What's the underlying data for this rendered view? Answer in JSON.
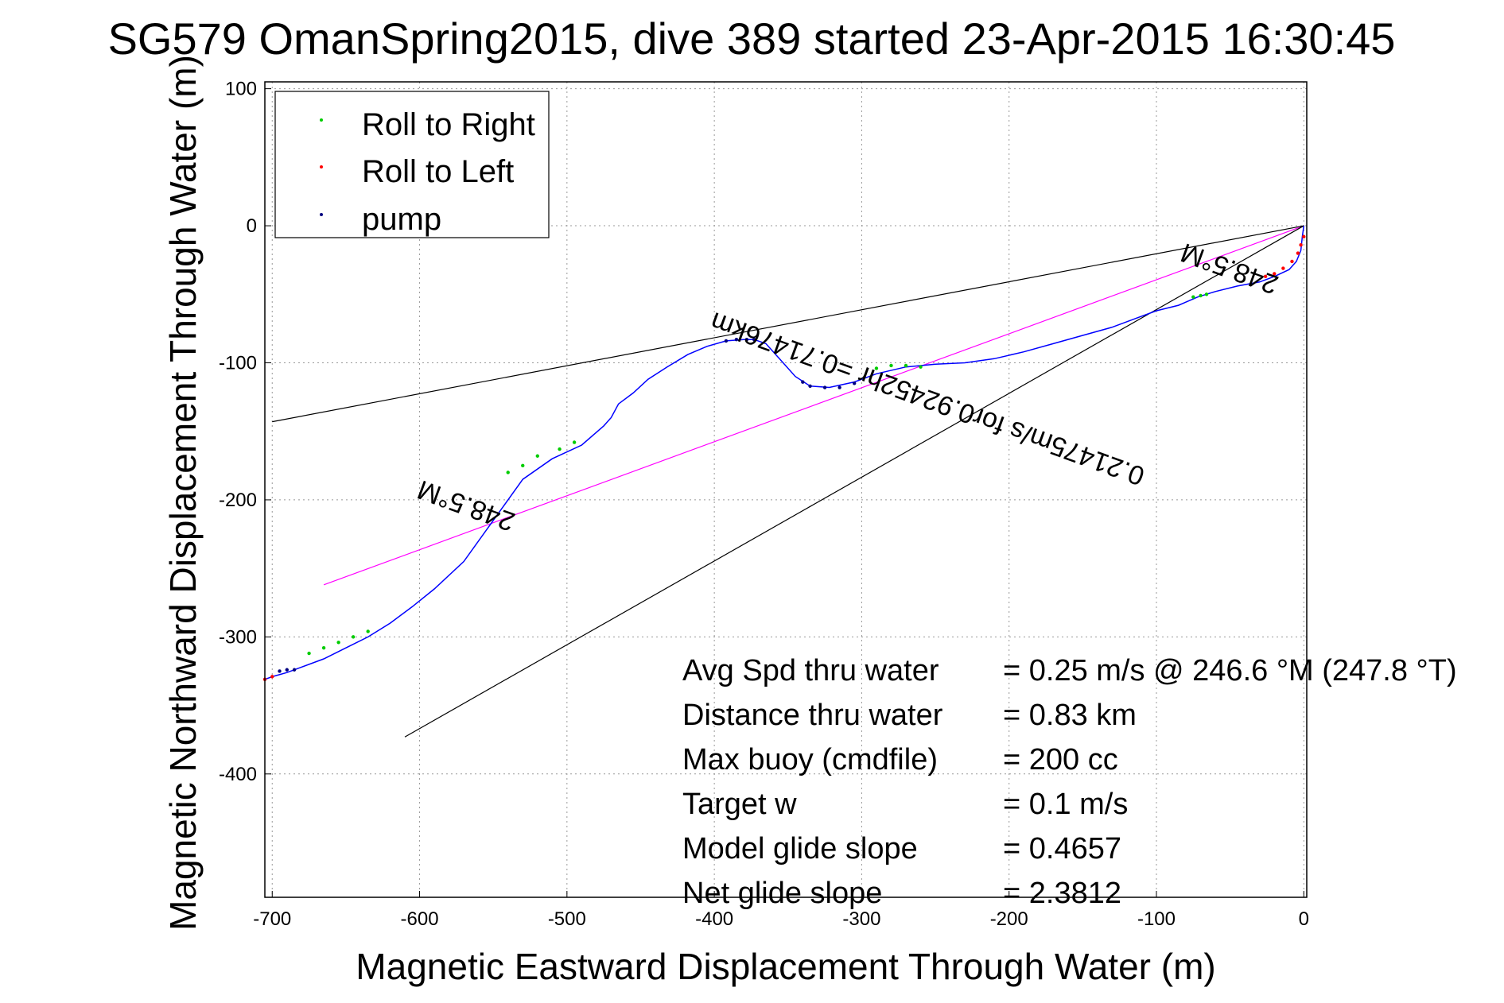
{
  "window": {
    "title": "SG579 OmanSpring2015, dive 389 started 23-Apr-2015 16:30:45"
  },
  "colors": {
    "track": "#0000ff",
    "roll_right": "#00cc00",
    "roll_left": "#ff0000",
    "pump": "#000080",
    "heading_fit": "#ff00ff",
    "sector": "#000000",
    "grid": "#999999"
  },
  "chart_data": {
    "type": "line",
    "title": "SG579 OmanSpring2015, dive 389 started 23-Apr-2015 16:30:45",
    "xlabel": "Magnetic Eastward Displacement Through Water (m)",
    "ylabel": "Magnetic Northward Displacement Through Water (m)",
    "xlim": [
      -705,
      2
    ],
    "ylim": [
      -490,
      105
    ],
    "xticks": [
      -700,
      -600,
      -500,
      -400,
      -300,
      -200,
      -100,
      0
    ],
    "yticks": [
      100,
      0,
      -100,
      -200,
      -300,
      -400
    ],
    "grid": true,
    "legend": {
      "position": "top-left",
      "entries": [
        "Roll to Right",
        "Roll to Left",
        "pump"
      ]
    },
    "series": [
      {
        "name": "track",
        "x": [
          0,
          -1,
          -2,
          -5,
          -10,
          -20,
          -30,
          -45,
          -60,
          -72,
          -85,
          -100,
          -115,
          -130,
          -150,
          -170,
          -190,
          -210,
          -230,
          -250,
          -270,
          -290,
          -305,
          -322,
          -335,
          -345,
          -355,
          -365,
          -373,
          -380,
          -392,
          -405,
          -418,
          -432,
          -445,
          -455,
          -465,
          -470,
          -475,
          -490,
          -510,
          -530,
          -550,
          -570,
          -590,
          -605,
          -620,
          -635,
          -650,
          -665,
          -680,
          -690,
          -700,
          -705
        ],
        "y": [
          0,
          -8,
          -18,
          -26,
          -32,
          -37,
          -41,
          -44,
          -48,
          -52,
          -58,
          -62,
          -68,
          -74,
          -80,
          -86,
          -92,
          -97,
          -100,
          -101,
          -103,
          -108,
          -114,
          -118,
          -117,
          -110,
          -98,
          -86,
          -83,
          -83,
          -84,
          -88,
          -94,
          -103,
          -112,
          -122,
          -130,
          -140,
          -146,
          -160,
          -170,
          -185,
          -215,
          -245,
          -265,
          -278,
          -290,
          -300,
          -308,
          -316,
          -322,
          -326,
          -329,
          -331
        ]
      },
      {
        "name": "Roll to Right",
        "x": [
          -75,
          -70,
          -66,
          -260,
          -270,
          -280,
          -290,
          -495,
          -505,
          -520,
          -530,
          -540,
          -635,
          -645,
          -655,
          -665,
          -675
        ],
        "y": [
          -52,
          -51,
          -50,
          -103,
          -102,
          -102,
          -104,
          -158,
          -163,
          -168,
          -175,
          -180,
          -296,
          -300,
          -304,
          -308,
          -312
        ]
      },
      {
        "name": "Roll to Left",
        "x": [
          0,
          -2,
          -4,
          -8,
          -14,
          -20,
          -26,
          -700,
          -705
        ],
        "y": [
          -8,
          -14,
          -20,
          -26,
          -31,
          -35,
          -37,
          -329,
          -331
        ]
      },
      {
        "name": "pump",
        "x": [
          -305,
          -315,
          -325,
          -335,
          -340,
          -373,
          -378,
          -385,
          -392,
          -685,
          -690,
          -695
        ],
        "y": [
          -115,
          -118,
          -118,
          -117,
          -114,
          -83,
          -83,
          -83,
          -84,
          -324,
          -324,
          -325
        ]
      }
    ],
    "lines": [
      {
        "name": "heading fit",
        "x": [
          -665,
          0
        ],
        "y": [
          -262,
          0
        ]
      },
      {
        "name": "sector upper",
        "x": [
          -700,
          0
        ],
        "y": [
          -143,
          0
        ]
      },
      {
        "name": "sector lower",
        "x": [
          -610,
          0
        ],
        "y": [
          -373,
          0
        ]
      }
    ],
    "annotations": [
      {
        "text": "248.5°M",
        "x": -50,
        "y": -30,
        "rotation": 200
      },
      {
        "text": "248.5°M",
        "x": -568,
        "y": -203,
        "rotation": 200
      },
      {
        "text": "0.21475m/s for0.92452hr =0.71476km",
        "x": -255,
        "y": -125,
        "rotation": 200
      }
    ],
    "stats": [
      {
        "label": "Avg Spd thru water",
        "value": "=  0.25 m/s @ 246.6 °M (247.8 °T)"
      },
      {
        "label": "Distance thru water",
        "value": "=  0.83 km"
      },
      {
        "label": "Max buoy (cmdfile)",
        "value": "= 200 cc"
      },
      {
        "label": "Target w",
        "value": "= 0.1 m/s"
      },
      {
        "label": "Model glide slope",
        "value": "= 0.4657"
      },
      {
        "label": "Net glide slope",
        "value": "= 2.3812"
      }
    ]
  }
}
